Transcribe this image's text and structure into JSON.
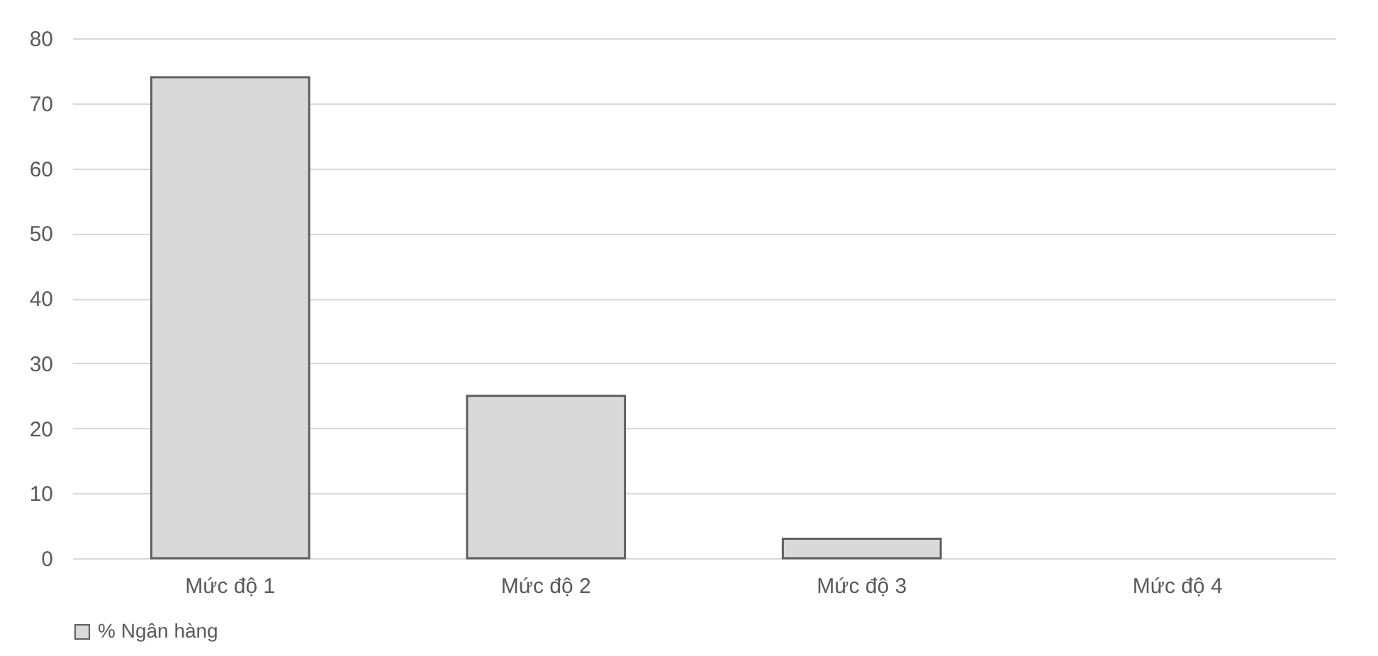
{
  "chart_data": {
    "type": "bar",
    "categories": [
      "Mức độ 1",
      "Mức độ 2",
      "Mức độ 3",
      "Mức độ 4"
    ],
    "series": [
      {
        "name": "% Ngân hàng",
        "color": "#d9d9d9",
        "values": [
          74,
          25,
          3,
          0
        ]
      }
    ],
    "ylim": [
      0,
      80
    ],
    "yticks": [
      0,
      10,
      20,
      30,
      40,
      50,
      60,
      70,
      80
    ],
    "grid": "y",
    "legend": "bottom"
  }
}
